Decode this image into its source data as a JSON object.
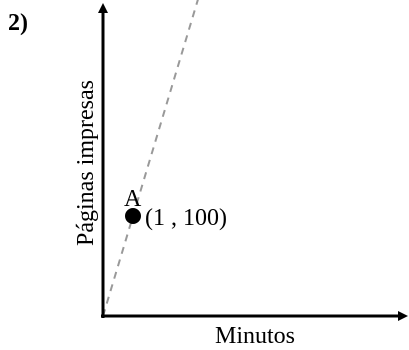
{
  "problem_label": "2)",
  "chart_data": {
    "type": "line",
    "title": "",
    "xlabel": "Minutos",
    "ylabel": "Páginas impresas",
    "xlim": [
      0,
      10
    ],
    "ylim": [
      0,
      310
    ],
    "grid": false,
    "series": [
      {
        "x": [
          0,
          3.2
        ],
        "y": [
          0,
          320
        ],
        "style": "dashed",
        "color": "#999999"
      }
    ],
    "points": [
      {
        "label": "A",
        "x": 1,
        "y": 100,
        "coordinate_text": "(1 , 100)"
      }
    ]
  }
}
